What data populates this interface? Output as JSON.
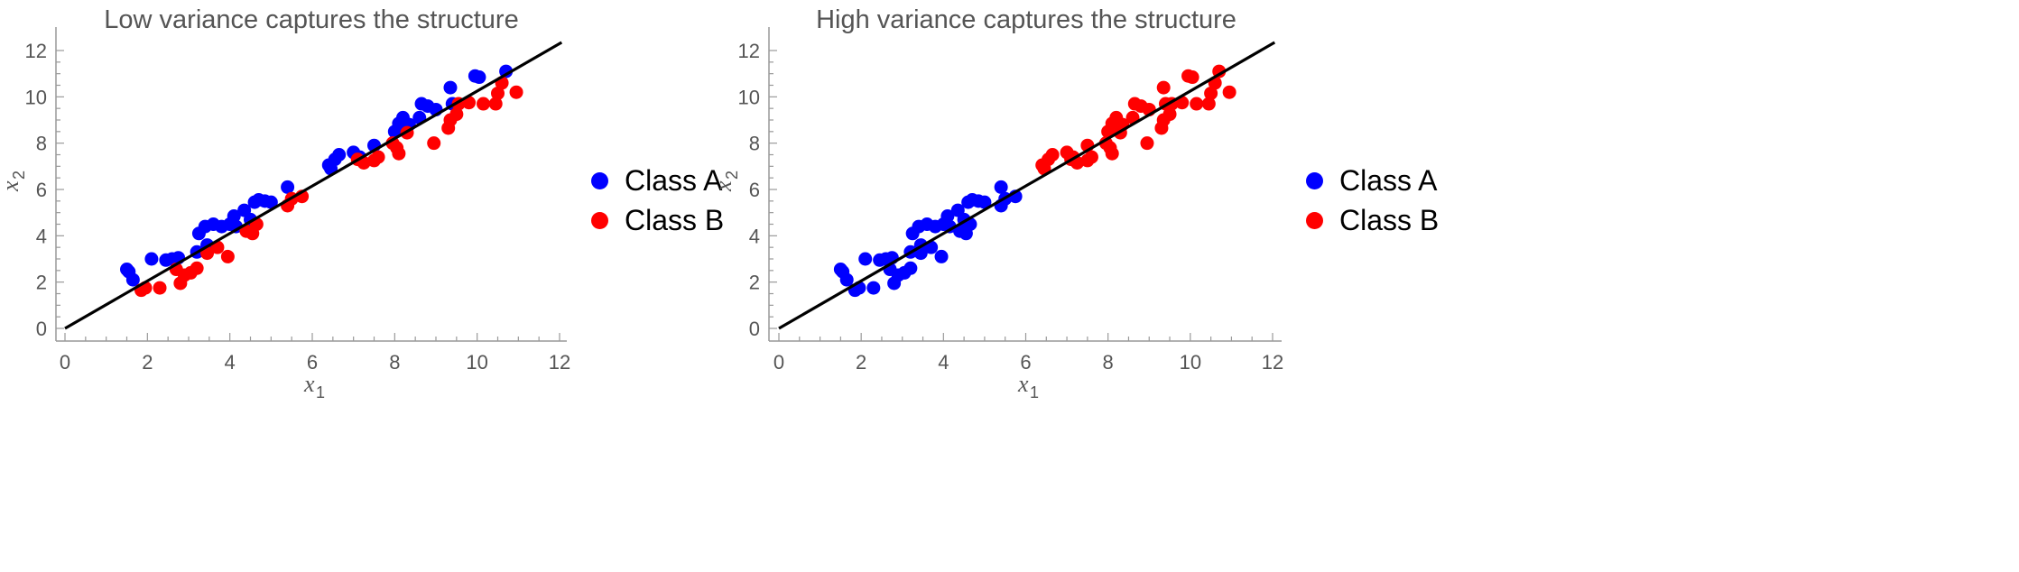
{
  "chart_data": [
    {
      "type": "scatter",
      "title": "Low variance captures the structure",
      "xlabel": "x",
      "xlabel_sub": "1",
      "ylabel": "x",
      "ylabel_sub": "2",
      "xlim": [
        -0.2,
        12.2
      ],
      "ylim": [
        -0.3,
        13
      ],
      "xticks": [
        0,
        2,
        4,
        6,
        8,
        10,
        12
      ],
      "yticks": [
        0,
        2,
        4,
        6,
        8,
        10,
        12
      ],
      "grid": false,
      "legend_position": "right",
      "fit_line": {
        "x": [
          0,
          12.05
        ],
        "y": [
          0,
          12.35
        ],
        "color": "#000000"
      },
      "series": [
        {
          "name": "Class A",
          "color": "#0000ff",
          "x": [
            1.5,
            1.55,
            1.65,
            2.1,
            2.45,
            2.6,
            2.75,
            3.2,
            3.25,
            3.4,
            3.45,
            3.6,
            3.8,
            4.0,
            4.1,
            4.15,
            4.35,
            4.5,
            4.6,
            4.7,
            4.85,
            5.0,
            5.4,
            6.4,
            6.45,
            6.55,
            6.65,
            7.0,
            7.15,
            7.5,
            8.0,
            8.1,
            8.15,
            8.2,
            8.35,
            8.6,
            8.65,
            8.8,
            9.0,
            9.35,
            9.4,
            9.95,
            10.05,
            10.7
          ],
          "y": [
            2.55,
            2.45,
            2.1,
            3.0,
            2.95,
            3.0,
            3.05,
            3.3,
            4.1,
            4.4,
            3.6,
            4.5,
            4.4,
            4.5,
            4.85,
            4.4,
            5.1,
            4.7,
            5.45,
            5.55,
            5.5,
            5.45,
            6.1,
            7.05,
            6.9,
            7.3,
            7.5,
            7.6,
            7.4,
            7.9,
            8.5,
            8.85,
            8.9,
            9.1,
            8.8,
            9.1,
            9.7,
            9.6,
            9.45,
            10.4,
            9.7,
            10.9,
            10.85,
            11.1
          ]
        },
        {
          "name": "Class B",
          "color": "#ff0000",
          "x": [
            1.85,
            1.95,
            2.3,
            2.7,
            2.8,
            2.9,
            3.05,
            3.2,
            3.45,
            3.7,
            3.95,
            4.4,
            4.55,
            4.65,
            5.4,
            5.5,
            5.75,
            7.1,
            7.25,
            7.5,
            7.6,
            7.95,
            8.05,
            8.1,
            8.3,
            8.95,
            9.3,
            9.35,
            9.5,
            9.55,
            9.8,
            10.15,
            10.45,
            10.5,
            10.6,
            10.95
          ],
          "y": [
            1.65,
            1.75,
            1.75,
            2.55,
            1.95,
            2.3,
            2.4,
            2.6,
            3.25,
            3.5,
            3.1,
            4.2,
            4.1,
            4.5,
            5.3,
            5.6,
            5.7,
            7.3,
            7.15,
            7.25,
            7.4,
            8.0,
            7.8,
            7.55,
            8.45,
            8.0,
            8.65,
            9.0,
            9.25,
            9.7,
            9.75,
            9.7,
            9.7,
            10.15,
            10.6,
            10.2
          ]
        }
      ]
    },
    {
      "type": "scatter",
      "title": "High variance captures the structure",
      "xlabel": "x",
      "xlabel_sub": "1",
      "ylabel": "x",
      "ylabel_sub": "2",
      "xlim": [
        -0.2,
        12.2
      ],
      "ylim": [
        -0.3,
        13
      ],
      "xticks": [
        0,
        2,
        4,
        6,
        8,
        10,
        12
      ],
      "yticks": [
        0,
        2,
        4,
        6,
        8,
        10,
        12
      ],
      "grid": false,
      "legend_position": "right",
      "fit_line": {
        "x": [
          0,
          12.05
        ],
        "y": [
          0,
          12.35
        ],
        "color": "#000000"
      },
      "series": [
        {
          "name": "Class A",
          "color": "#0000ff",
          "x": [
            1.5,
            1.55,
            1.65,
            1.85,
            1.95,
            2.1,
            2.3,
            2.45,
            2.6,
            2.7,
            2.75,
            2.8,
            2.9,
            3.05,
            3.2,
            3.2,
            3.25,
            3.4,
            3.45,
            3.45,
            3.6,
            3.7,
            3.8,
            3.95,
            4.0,
            4.1,
            4.15,
            4.35,
            4.4,
            4.5,
            4.55,
            4.6,
            4.65,
            4.7,
            4.85,
            5.0,
            5.4,
            5.4,
            5.5,
            5.75
          ],
          "y": [
            2.55,
            2.45,
            2.1,
            1.65,
            1.75,
            3.0,
            1.75,
            2.95,
            3.0,
            2.55,
            3.05,
            1.95,
            2.3,
            2.4,
            2.6,
            3.3,
            4.1,
            4.4,
            3.6,
            3.25,
            4.5,
            3.5,
            4.4,
            3.1,
            4.5,
            4.85,
            4.4,
            5.1,
            4.2,
            4.7,
            4.1,
            5.45,
            4.5,
            5.55,
            5.5,
            5.45,
            6.1,
            5.3,
            5.6,
            5.7
          ]
        },
        {
          "name": "Class B",
          "color": "#ff0000",
          "x": [
            6.4,
            6.45,
            6.55,
            6.65,
            7.0,
            7.1,
            7.15,
            7.25,
            7.5,
            7.5,
            7.6,
            7.95,
            8.0,
            8.05,
            8.1,
            8.1,
            8.15,
            8.2,
            8.3,
            8.35,
            8.6,
            8.65,
            8.8,
            8.95,
            9.0,
            9.3,
            9.35,
            9.35,
            9.4,
            9.5,
            9.55,
            9.8,
            9.95,
            10.05,
            10.15,
            10.45,
            10.5,
            10.6,
            10.7,
            10.95
          ],
          "y": [
            7.05,
            6.9,
            7.3,
            7.5,
            7.6,
            7.3,
            7.4,
            7.15,
            7.9,
            7.25,
            7.4,
            8.0,
            8.5,
            7.8,
            8.85,
            7.55,
            8.9,
            9.1,
            8.45,
            8.8,
            9.1,
            9.7,
            9.6,
            8.0,
            9.45,
            8.65,
            10.4,
            9.0,
            9.7,
            9.25,
            9.7,
            9.75,
            10.9,
            10.85,
            9.7,
            9.7,
            10.15,
            10.6,
            11.1,
            10.2
          ]
        }
      ]
    }
  ]
}
